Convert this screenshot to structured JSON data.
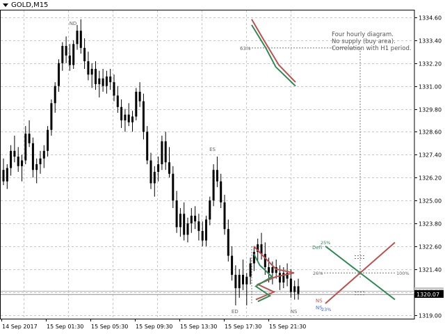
{
  "window": {
    "symbol_label": "GOLD,M15"
  },
  "annotation": {
    "lines": [
      "Four hourly diagram.",
      "No supply (buy area).",
      "Correlation with H1 period."
    ]
  },
  "colors": {
    "up_line": "#c0504d",
    "down_line": "#2e8b57",
    "candle": "#000000",
    "grid": "#c8c8c8",
    "current_price_bg": "#000000",
    "label_gray": "#666666",
    "label_blue": "#4169e1"
  },
  "chart_data": {
    "type": "candlestick",
    "symbol": "GOLD",
    "timeframe": "M15",
    "ylim": [
      1318.8,
      1335.0
    ],
    "y_ticks": [
      "1334.60",
      "1333.40",
      "1332.20",
      "1331.00",
      "1329.80",
      "1328.60",
      "1327.40",
      "1326.20",
      "1325.00",
      "1323.80",
      "1322.60",
      "1321.40",
      "1320.20",
      "1319.00"
    ],
    "y_tick_values": [
      1334.6,
      1333.4,
      1332.2,
      1331.0,
      1329.8,
      1328.6,
      1327.4,
      1326.2,
      1325.0,
      1323.8,
      1322.6,
      1321.4,
      1320.2,
      1319.0
    ],
    "x_ticks": [
      "14 Sep 2017",
      "15 Sep 01:30",
      "15 Sep 05:30",
      "15 Sep 09:30",
      "15 Sep 13:30",
      "15 Sep 17:30",
      "15 Sep 21:30"
    ],
    "current_price": "1320.07",
    "current_price_value": 1320.07,
    "secondary_price": "1320.24",
    "secondary_price_value": 1320.24,
    "candles": [
      [
        1326.6,
        1327.2,
        1325.8,
        1326.0
      ],
      [
        1326.0,
        1326.9,
        1325.6,
        1326.7
      ],
      [
        1326.7,
        1327.9,
        1326.3,
        1327.6
      ],
      [
        1327.6,
        1328.4,
        1327.0,
        1327.3
      ],
      [
        1327.3,
        1327.8,
        1326.5,
        1326.8
      ],
      [
        1326.8,
        1327.4,
        1326.0,
        1327.1
      ],
      [
        1327.1,
        1328.9,
        1326.9,
        1328.5
      ],
      [
        1328.5,
        1329.2,
        1327.8,
        1328.0
      ],
      [
        1328.0,
        1328.3,
        1326.2,
        1326.6
      ],
      [
        1326.6,
        1327.2,
        1325.9,
        1326.9
      ],
      [
        1326.9,
        1327.6,
        1326.4,
        1327.2
      ],
      [
        1327.2,
        1327.9,
        1326.7,
        1327.6
      ],
      [
        1327.6,
        1328.9,
        1327.3,
        1328.7
      ],
      [
        1328.7,
        1330.3,
        1328.4,
        1330.1
      ],
      [
        1330.1,
        1331.2,
        1329.6,
        1331.0
      ],
      [
        1331.0,
        1332.4,
        1330.7,
        1332.2
      ],
      [
        1332.2,
        1333.3,
        1331.8,
        1333.1
      ],
      [
        1333.1,
        1333.6,
        1332.2,
        1332.6
      ],
      [
        1332.6,
        1333.2,
        1331.8,
        1332.1
      ],
      [
        1332.1,
        1333.4,
        1331.9,
        1333.2
      ],
      [
        1333.2,
        1334.2,
        1332.9,
        1333.9
      ],
      [
        1333.9,
        1334.5,
        1332.7,
        1333.0
      ],
      [
        1333.0,
        1333.5,
        1331.9,
        1332.3
      ],
      [
        1332.3,
        1332.8,
        1331.3,
        1331.6
      ],
      [
        1331.6,
        1332.2,
        1330.9,
        1331.9
      ],
      [
        1331.9,
        1332.3,
        1330.8,
        1331.1
      ],
      [
        1331.1,
        1331.8,
        1330.4,
        1331.4
      ],
      [
        1331.4,
        1331.9,
        1330.7,
        1331.0
      ],
      [
        1331.0,
        1331.8,
        1330.6,
        1331.5
      ],
      [
        1331.5,
        1331.9,
        1330.8,
        1331.2
      ],
      [
        1331.2,
        1331.6,
        1330.2,
        1330.5
      ],
      [
        1330.5,
        1331.0,
        1329.6,
        1329.9
      ],
      [
        1329.9,
        1330.3,
        1328.8,
        1329.2
      ],
      [
        1329.2,
        1329.8,
        1328.6,
        1329.5
      ],
      [
        1329.5,
        1330.1,
        1328.9,
        1329.1
      ],
      [
        1329.1,
        1329.7,
        1328.6,
        1329.4
      ],
      [
        1329.4,
        1330.9,
        1329.2,
        1330.7
      ],
      [
        1330.7,
        1331.2,
        1329.9,
        1330.2
      ],
      [
        1330.2,
        1330.6,
        1328.2,
        1328.6
      ],
      [
        1328.6,
        1328.9,
        1326.9,
        1327.1
      ],
      [
        1327.1,
        1327.5,
        1325.6,
        1325.9
      ],
      [
        1325.9,
        1326.8,
        1325.2,
        1326.5
      ],
      [
        1326.5,
        1327.3,
        1326.0,
        1326.9
      ],
      [
        1326.9,
        1328.4,
        1326.6,
        1328.1
      ],
      [
        1328.1,
        1328.6,
        1326.6,
        1327.0
      ],
      [
        1327.0,
        1327.8,
        1326.2,
        1326.4
      ],
      [
        1326.4,
        1326.8,
        1324.6,
        1325.0
      ],
      [
        1325.0,
        1325.5,
        1323.3,
        1323.6
      ],
      [
        1323.6,
        1324.6,
        1323.1,
        1324.3
      ],
      [
        1324.3,
        1324.9,
        1322.9,
        1323.2
      ],
      [
        1323.2,
        1324.1,
        1322.8,
        1323.8
      ],
      [
        1323.8,
        1324.6,
        1323.3,
        1324.2
      ],
      [
        1324.2,
        1324.7,
        1323.5,
        1323.9
      ],
      [
        1323.9,
        1324.3,
        1322.9,
        1323.4
      ],
      [
        1323.4,
        1323.9,
        1322.6,
        1322.9
      ],
      [
        1322.9,
        1324.2,
        1322.6,
        1324.0
      ],
      [
        1324.0,
        1325.2,
        1323.7,
        1325.0
      ],
      [
        1325.0,
        1326.9,
        1324.7,
        1326.6
      ],
      [
        1326.6,
        1327.3,
        1325.7,
        1326.0
      ],
      [
        1326.0,
        1326.4,
        1324.6,
        1324.9
      ],
      [
        1324.9,
        1325.3,
        1323.2,
        1323.5
      ],
      [
        1323.5,
        1324.0,
        1321.8,
        1322.1
      ],
      [
        1322.1,
        1322.6,
        1320.8,
        1321.1
      ],
      [
        1321.1,
        1321.6,
        1319.5,
        1320.4
      ],
      [
        1320.4,
        1321.4,
        1319.9,
        1321.1
      ],
      [
        1321.1,
        1321.9,
        1320.3,
        1320.6
      ],
      [
        1320.6,
        1321.2,
        1319.5,
        1321.0
      ],
      [
        1321.0,
        1322.0,
        1320.6,
        1321.7
      ],
      [
        1321.7,
        1322.6,
        1321.3,
        1322.3
      ],
      [
        1322.3,
        1323.0,
        1321.8,
        1322.7
      ],
      [
        1322.7,
        1323.3,
        1321.9,
        1322.2
      ],
      [
        1322.2,
        1322.8,
        1321.1,
        1321.5
      ],
      [
        1321.5,
        1322.0,
        1320.7,
        1321.2
      ],
      [
        1321.2,
        1321.8,
        1320.6,
        1321.5
      ],
      [
        1321.5,
        1321.9,
        1320.9,
        1321.2
      ],
      [
        1321.2,
        1321.6,
        1320.3,
        1320.7
      ],
      [
        1320.7,
        1321.5,
        1320.4,
        1321.2
      ],
      [
        1321.2,
        1321.7,
        1320.5,
        1320.9
      ],
      [
        1320.9,
        1321.4,
        1319.9,
        1320.2
      ],
      [
        1320.2,
        1320.8,
        1319.8,
        1320.5
      ],
      [
        1320.5,
        1320.9,
        1319.8,
        1320.1
      ]
    ],
    "markers": [
      {
        "text": "ND",
        "candle": 19,
        "price": 1334.2,
        "color": "gray"
      },
      {
        "text": "ES",
        "candle": 57,
        "price": 1327.6,
        "color": "gray"
      },
      {
        "text": "ED",
        "candle": 63,
        "price": 1319.1,
        "color": "gray"
      },
      {
        "text": "NS",
        "candle": 79,
        "price": 1319.1,
        "color": "gray"
      }
    ],
    "upper_diagram": {
      "pct_label": "63%",
      "red": [
        [
          1334.5,
          0.0
        ],
        [
          1333.4,
          0.28
        ],
        [
          1332.1,
          0.62
        ],
        [
          1331.2,
          1.0
        ]
      ],
      "green": [
        [
          1334.2,
          0.0
        ],
        [
          1333.0,
          0.32
        ],
        [
          1332.0,
          0.55
        ],
        [
          1331.0,
          1.0
        ]
      ]
    },
    "profile": {
      "red": [
        [
          1322.6,
          0
        ],
        [
          1321.4,
          0.55
        ],
        [
          1321.2,
          1.0
        ],
        [
          1321.0,
          0.55
        ],
        [
          1320.6,
          0.1
        ],
        [
          1320.2,
          0.5
        ],
        [
          1319.8,
          0.05
        ]
      ],
      "green": [
        [
          1322.2,
          0
        ],
        [
          1321.6,
          0.15
        ],
        [
          1321.0,
          0.45
        ],
        [
          1320.5,
          0.05
        ],
        [
          1320.0,
          0.4
        ],
        [
          1319.7,
          0.1
        ]
      ]
    },
    "cross_diagram": {
      "labels_left": [
        "Defi",
        "NS",
        "NS"
      ],
      "pct_labels": [
        "25%",
        "26%",
        "100%",
        "23%"
      ],
      "red": {
        "from": 1319.6,
        "to": 1322.8
      },
      "green": {
        "from": 1322.6,
        "to": 1319.8
      }
    }
  }
}
